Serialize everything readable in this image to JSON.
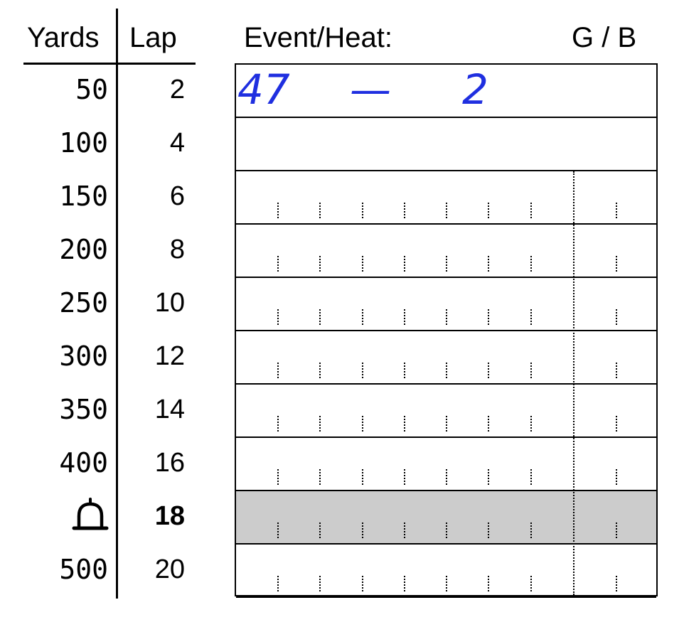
{
  "header": {
    "yards_label": "Yards",
    "lap_label": "Lap",
    "event_heat_label": "Event/Heat:",
    "gender_label": "G / B"
  },
  "rows": [
    {
      "yards": "50",
      "lap": "2"
    },
    {
      "yards": "100",
      "lap": "4"
    },
    {
      "yards": "150",
      "lap": "6"
    },
    {
      "yards": "200",
      "lap": "8"
    },
    {
      "yards": "250",
      "lap": "10"
    },
    {
      "yards": "300",
      "lap": "12"
    },
    {
      "yards": "350",
      "lap": "14"
    },
    {
      "yards": "400",
      "lap": "16"
    },
    {
      "yards": "",
      "icon": "bell-icon",
      "lap": "18"
    },
    {
      "yards": "500",
      "lap": "20"
    }
  ],
  "handwriting": {
    "event": "47",
    "dash": "—",
    "heat": "2"
  },
  "colors": {
    "ink": "#1f2fe0",
    "shaded_row": "#cccccc"
  }
}
